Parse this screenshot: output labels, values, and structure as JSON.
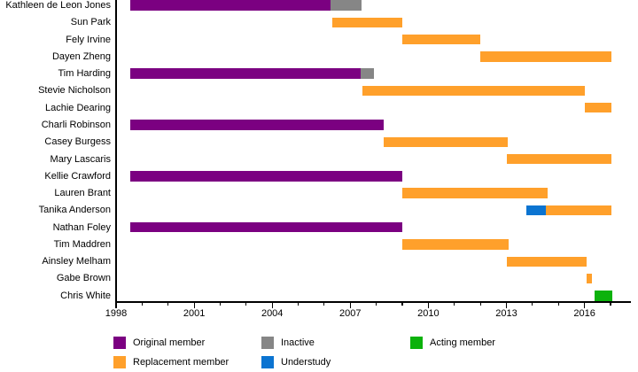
{
  "chart_data": {
    "type": "timeline",
    "title": "",
    "xlabel": "",
    "ylabel": "",
    "x_axis": {
      "min": 1998,
      "max": 2017.75,
      "major_ticks": [
        1998,
        2001,
        2004,
        2007,
        2010,
        2013,
        2016
      ],
      "minor_ticks": [
        1999,
        2000,
        2002,
        2003,
        2005,
        2006,
        2008,
        2009,
        2011,
        2012,
        2014,
        2015,
        2017
      ]
    },
    "colors": {
      "original": "#7B0081",
      "replacement": "#FFA02B",
      "inactive": "#868686",
      "understudy": "#0B74D1",
      "acting": "#0CB20C",
      "axis": "#000000"
    },
    "categories": [
      "Kathleen de Leon Jones",
      "Sun Park",
      "Fely Irvine",
      "Dayen Zheng",
      "Tim Harding",
      "Stevie Nicholson",
      "Lachie Dearing",
      "Charli Robinson",
      "Casey Burgess",
      "Mary Lascaris",
      "Kellie Crawford",
      "Lauren Brant",
      "Tanika Anderson",
      "Nathan Foley",
      "Tim Maddren",
      "Ainsley Melham",
      "Gabe Brown",
      "Chris White"
    ],
    "rows": [
      {
        "name": "Kathleen de Leon Jones",
        "segments": [
          {
            "status": "original",
            "start": 1998.55,
            "end": 2006.25
          },
          {
            "status": "inactive",
            "start": 2006.25,
            "end": 2007.45
          }
        ]
      },
      {
        "name": "Sun Park",
        "segments": [
          {
            "status": "replacement",
            "start": 2006.3,
            "end": 2009.0
          }
        ]
      },
      {
        "name": "Fely Irvine",
        "segments": [
          {
            "status": "replacement",
            "start": 2009.0,
            "end": 2012.0
          }
        ]
      },
      {
        "name": "Dayen Zheng",
        "segments": [
          {
            "status": "replacement",
            "start": 2012.0,
            "end": 2017.05
          }
        ]
      },
      {
        "name": "Tim Harding",
        "segments": [
          {
            "status": "original",
            "start": 1998.55,
            "end": 2007.4
          },
          {
            "status": "inactive",
            "start": 2007.4,
            "end": 2007.92
          }
        ]
      },
      {
        "name": "Stevie Nicholson",
        "segments": [
          {
            "status": "replacement",
            "start": 2007.45,
            "end": 2016.0
          }
        ]
      },
      {
        "name": "Lachie Dearing",
        "segments": [
          {
            "status": "replacement",
            "start": 2016.0,
            "end": 2017.05
          }
        ]
      },
      {
        "name": "Charli Robinson",
        "segments": [
          {
            "status": "original",
            "start": 1998.55,
            "end": 2008.27
          }
        ]
      },
      {
        "name": "Casey Burgess",
        "segments": [
          {
            "status": "replacement",
            "start": 2008.27,
            "end": 2013.05
          }
        ]
      },
      {
        "name": "Mary Lascaris",
        "segments": [
          {
            "status": "replacement",
            "start": 2013.02,
            "end": 2017.05
          }
        ]
      },
      {
        "name": "Kellie Crawford",
        "segments": [
          {
            "status": "original",
            "start": 1998.55,
            "end": 2009.0
          }
        ]
      },
      {
        "name": "Lauren Brant",
        "segments": [
          {
            "status": "replacement",
            "start": 2009.0,
            "end": 2014.58
          }
        ]
      },
      {
        "name": "Tanika Anderson",
        "segments": [
          {
            "status": "understudy",
            "start": 2013.76,
            "end": 2014.52
          },
          {
            "status": "replacement",
            "start": 2014.52,
            "end": 2017.05
          }
        ]
      },
      {
        "name": "Nathan Foley",
        "segments": [
          {
            "status": "original",
            "start": 1998.55,
            "end": 2009.0
          }
        ]
      },
      {
        "name": "Tim Maddren",
        "segments": [
          {
            "status": "replacement",
            "start": 2009.0,
            "end": 2013.07
          }
        ]
      },
      {
        "name": "Ainsley Melham",
        "segments": [
          {
            "status": "replacement",
            "start": 2013.02,
            "end": 2016.07
          }
        ]
      },
      {
        "name": "Gabe Brown",
        "segments": [
          {
            "status": "replacement",
            "start": 2016.07,
            "end": 2016.3
          }
        ]
      },
      {
        "name": "Chris White",
        "segments": [
          {
            "status": "acting",
            "start": 2016.37,
            "end": 2017.05
          }
        ]
      }
    ],
    "legend": {
      "position": "bottom",
      "columns": [
        {
          "items": [
            {
              "status": "original",
              "label": "Original member"
            },
            {
              "status": "replacement",
              "label": "Replacement member"
            }
          ]
        },
        {
          "items": [
            {
              "status": "inactive",
              "label": "Inactive"
            },
            {
              "status": "understudy",
              "label": "Understudy"
            }
          ]
        },
        {
          "items": [
            {
              "status": "acting",
              "label": "Acting member"
            }
          ]
        }
      ]
    }
  }
}
